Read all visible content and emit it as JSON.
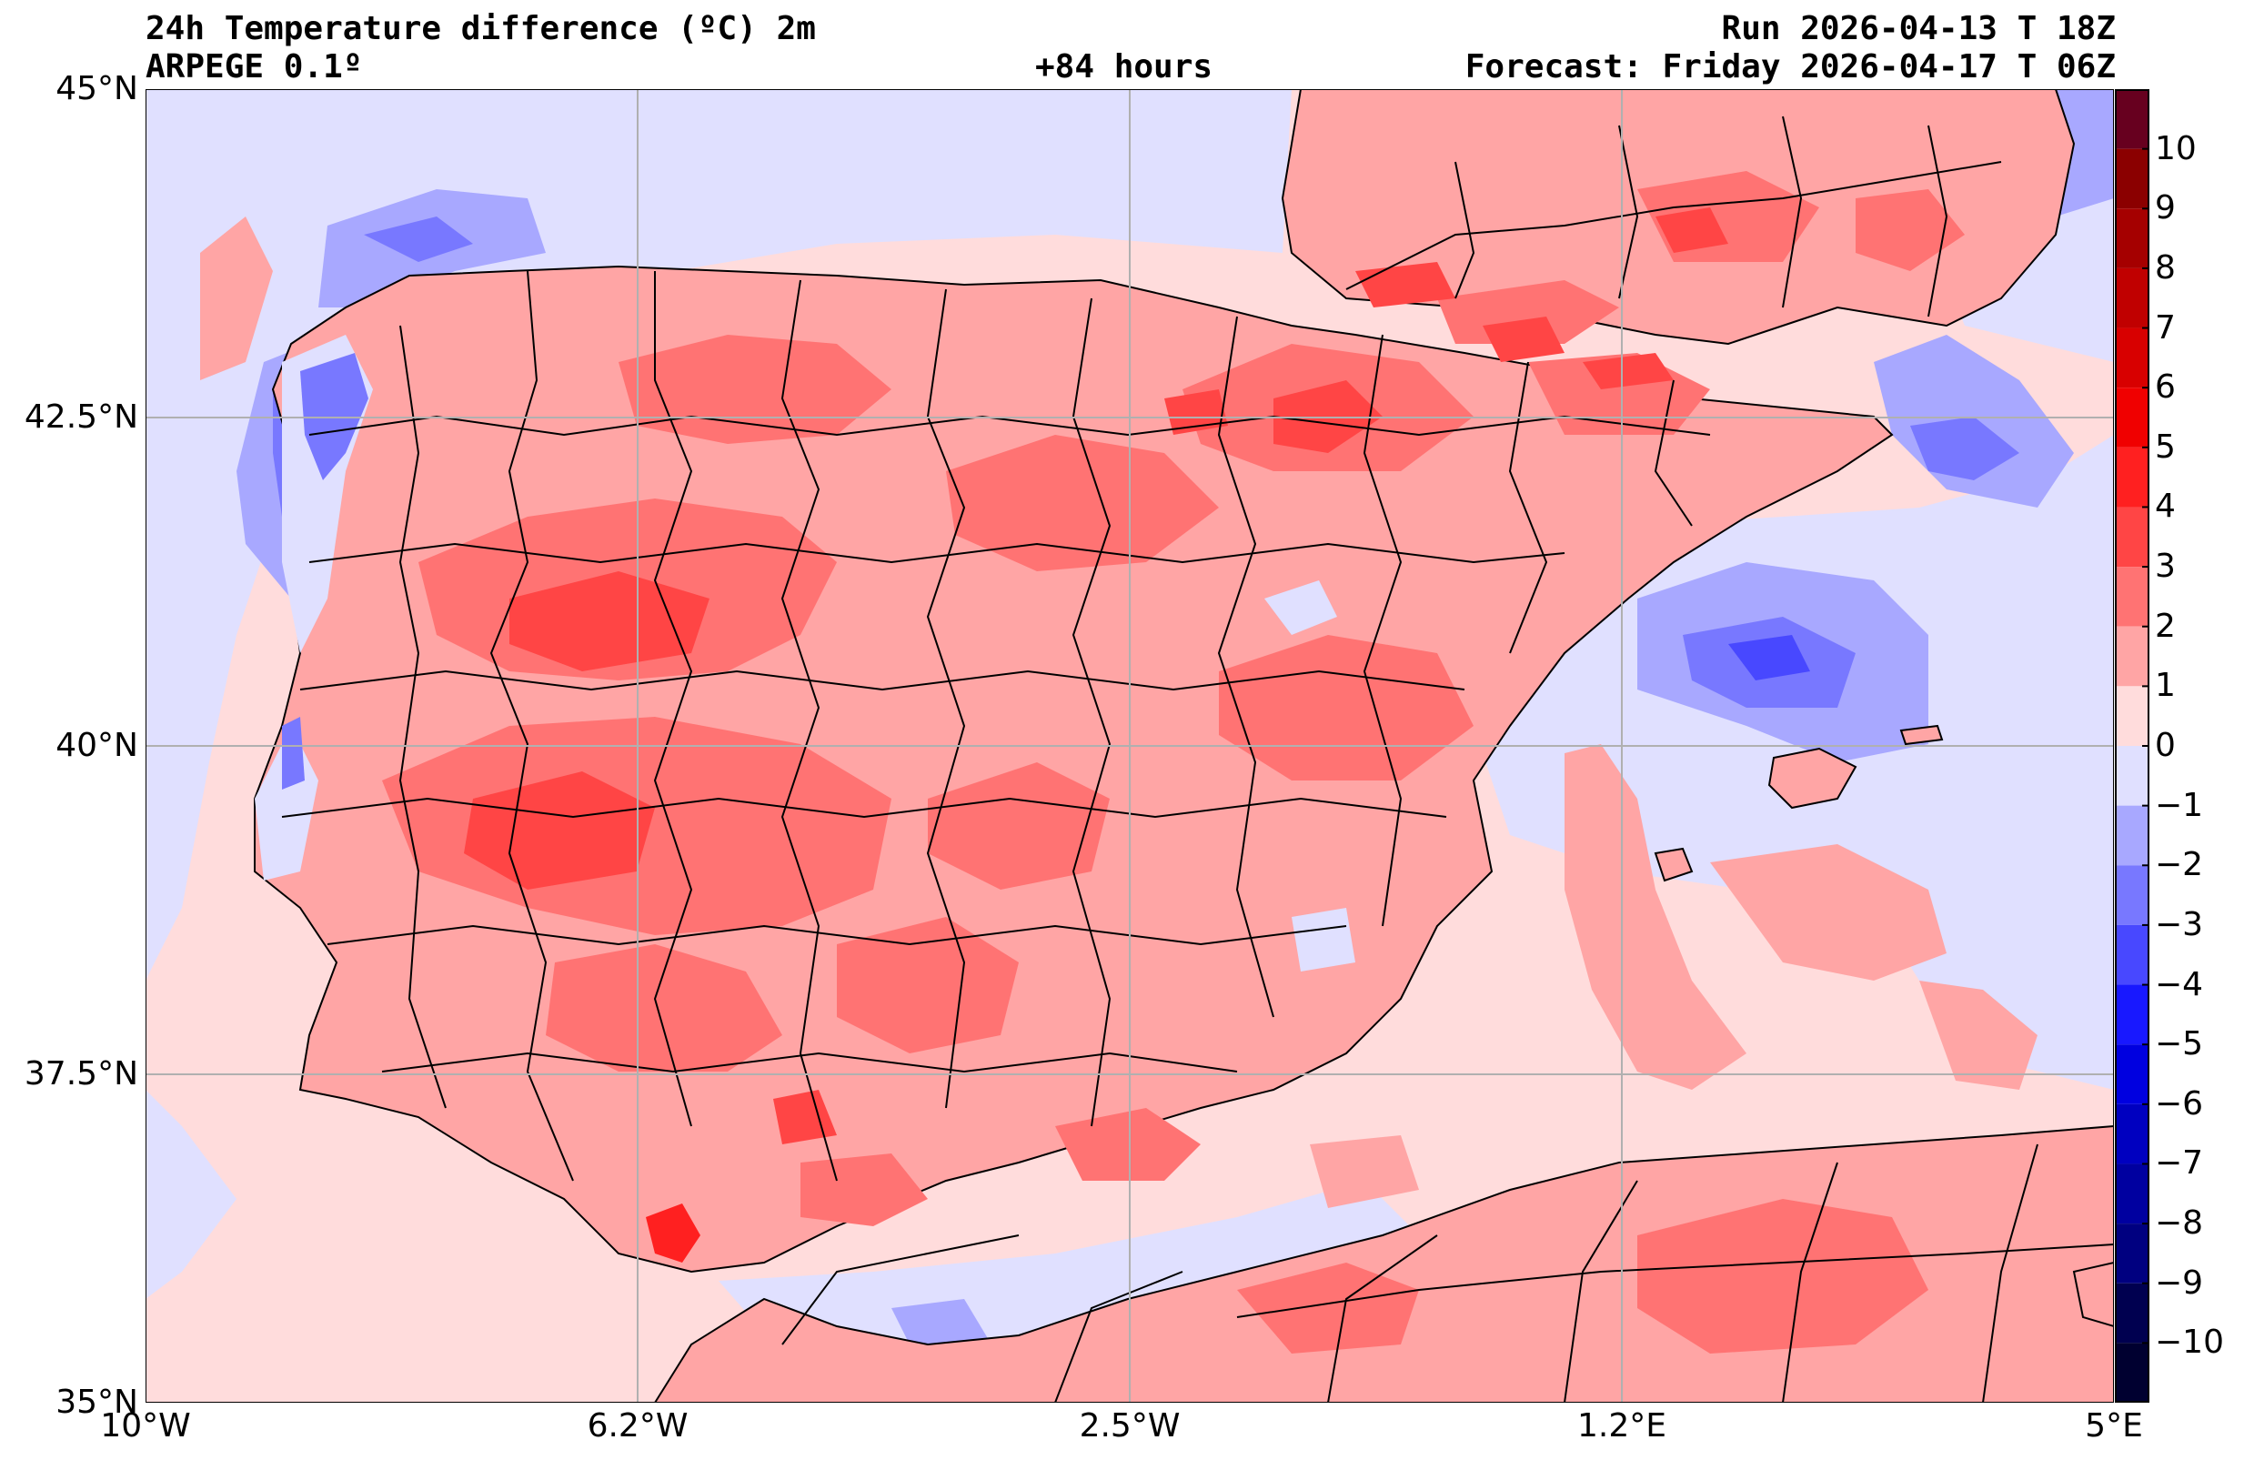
{
  "header": {
    "title_left_1": "24h Temperature difference (ºC) 2m",
    "title_left_2": "ARPEGE 0.1º",
    "title_center": "+84 hours",
    "title_right_1": "Run 2026-04-13 T 18Z",
    "title_right_2": "Forecast: Friday 2026-04-17 T 06Z"
  },
  "map": {
    "lat_range": [
      35,
      45
    ],
    "lon_range": [
      -10,
      5
    ],
    "lat_ticks": [
      {
        "value": 45,
        "label": "45°N"
      },
      {
        "value": 42.5,
        "label": "42.5°N"
      },
      {
        "value": 40,
        "label": "40°N"
      },
      {
        "value": 37.5,
        "label": "37.5°N"
      },
      {
        "value": 35,
        "label": "35°N"
      }
    ],
    "lon_ticks": [
      {
        "value": -10,
        "label": "10°W"
      },
      {
        "value": -6.25,
        "label": "6.2°W"
      },
      {
        "value": -2.5,
        "label": "2.5°W"
      },
      {
        "value": 1.25,
        "label": "1.2°E"
      },
      {
        "value": 5,
        "label": "5°E"
      }
    ],
    "grid": true
  },
  "colorbar": {
    "min": -11,
    "max": 11,
    "tick_labels": [
      "10",
      "9",
      "8",
      "7",
      "6",
      "5",
      "4",
      "3",
      "2",
      "1",
      "0",
      "−1",
      "−2",
      "−3",
      "−4",
      "−5",
      "−6",
      "−7",
      "−8",
      "−9",
      "−10"
    ],
    "tick_values": [
      10,
      9,
      8,
      7,
      6,
      5,
      4,
      3,
      2,
      1,
      0,
      -1,
      -2,
      -3,
      -4,
      -5,
      -6,
      -7,
      -8,
      -9,
      -10
    ],
    "colors": [
      "#67001f",
      "#8b0000",
      "#a50000",
      "#c00000",
      "#d80000",
      "#f00000",
      "#ff2020",
      "#ff4545",
      "#ff7373",
      "#ffa5a5",
      "#ffdcdc",
      "#e0e0ff",
      "#a8a8ff",
      "#7878ff",
      "#4848ff",
      "#1818ff",
      "#0000e0",
      "#0000c0",
      "#0000a0",
      "#000080",
      "#000050",
      "#000030"
    ]
  }
}
